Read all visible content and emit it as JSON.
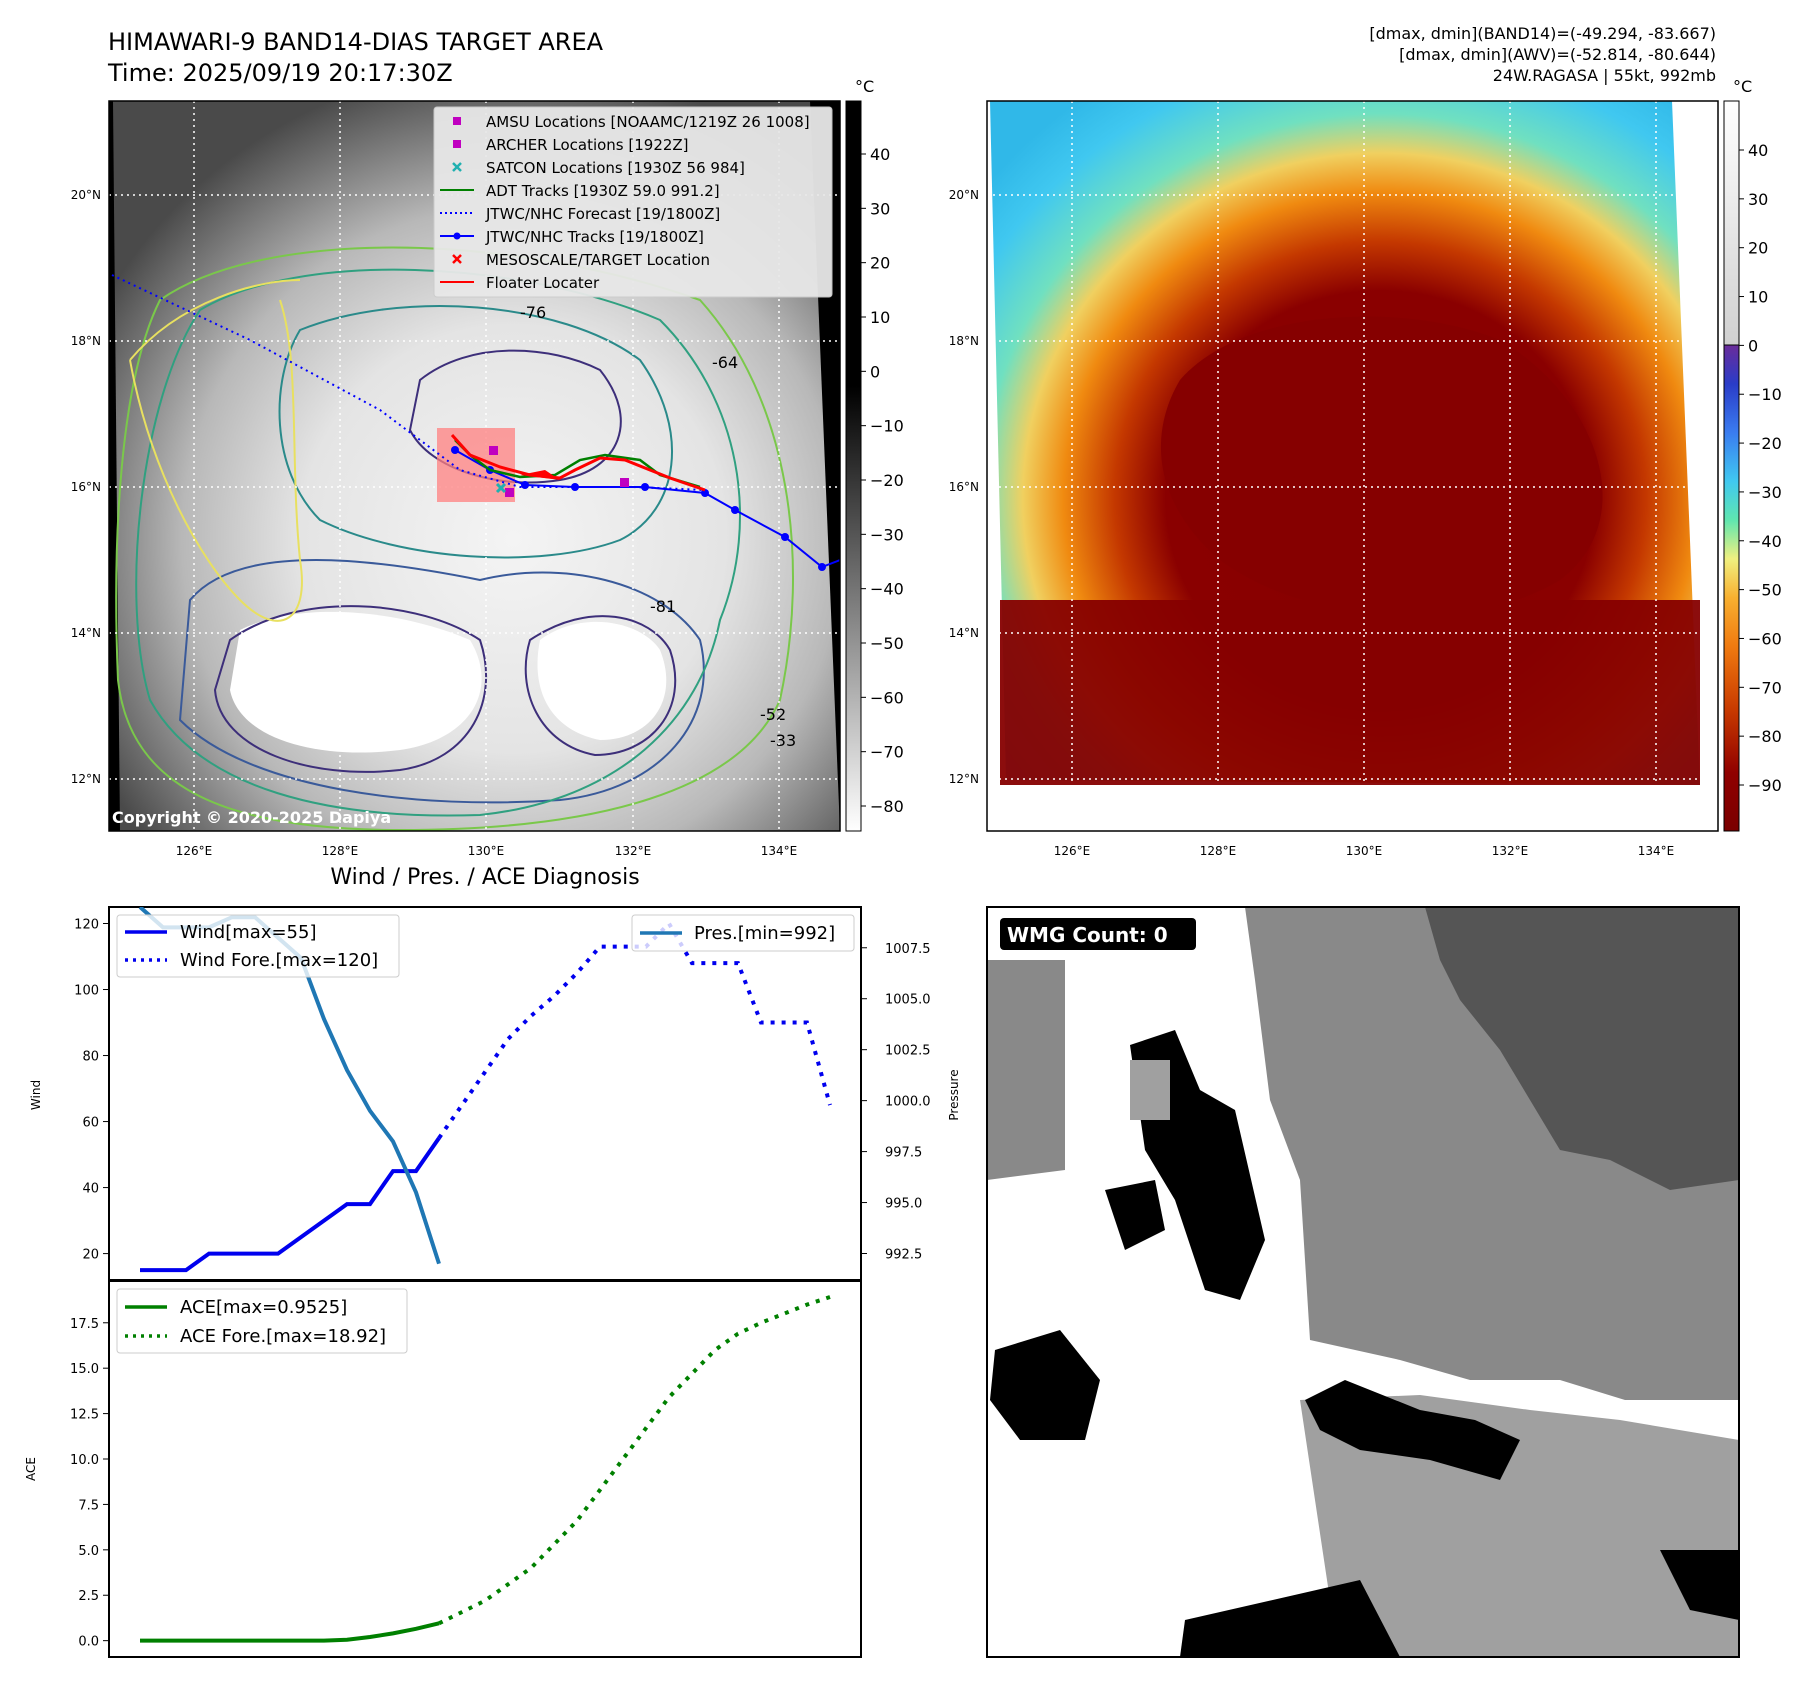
{
  "header": {
    "title_line1": "HIMAWARI-9 BAND14-DIAS TARGET AREA",
    "title_line2": "Time: 2025/09/19 20:17:30Z",
    "range_band14": "[dmax, dmin](BAND14)=(-49.294, -83.667)",
    "range_awv": "[dmax, dmin](AWV)=(-52.814, -80.644)",
    "storm_info": "24W.RAGASA | 55kt, 992mb"
  },
  "map_left": {
    "lon_labels": [
      "126°E",
      "128°E",
      "130°E",
      "132°E",
      "134°E"
    ],
    "lat_labels": [
      "20°N",
      "18°N",
      "16°N",
      "14°N",
      "12°N"
    ],
    "copyright": "Copyright © 2020-2025 Dapiya",
    "contour_labels": [
      "-76",
      "-64",
      "-81",
      "-52",
      "-33"
    ],
    "legend": [
      {
        "label": "AMSU Locations [NOAAMC/1219Z 26 1008]",
        "symbol": "square",
        "color": "#c000c0"
      },
      {
        "label": "ARCHER Locations [1922Z]",
        "symbol": "square",
        "color": "#c000c0"
      },
      {
        "label": "SATCON Locations [1930Z 56 984]",
        "symbol": "x",
        "color": "#20b0b0"
      },
      {
        "label": "ADT Tracks [1930Z 59.0 991.2]",
        "symbol": "line",
        "color": "#008000"
      },
      {
        "label": "JTWC/NHC Forecast [19/1800Z]",
        "symbol": "dotted",
        "color": "#0000ff"
      },
      {
        "label": "JTWC/NHC Tracks [19/1800Z]",
        "symbol": "line-dot",
        "color": "#0000ff"
      },
      {
        "label": "MESOSCALE/TARGET Location",
        "symbol": "x",
        "color": "#ff0000"
      },
      {
        "label": "Floater Locater",
        "symbol": "line",
        "color": "#ff0000"
      }
    ],
    "colorbar": {
      "unit": "°C",
      "ticks": [
        "40",
        "30",
        "20",
        "10",
        "0",
        "−10",
        "−20",
        "−30",
        "−40",
        "−50",
        "−60",
        "−70",
        "−80"
      ]
    }
  },
  "map_right": {
    "lon_labels": [
      "126°E",
      "128°E",
      "130°E",
      "132°E",
      "134°E"
    ],
    "lat_labels": [
      "20°N",
      "18°N",
      "16°N",
      "14°N",
      "12°N"
    ],
    "colorbar": {
      "unit": "°C",
      "ticks": [
        "40",
        "30",
        "20",
        "10",
        "0",
        "−10",
        "−20",
        "−30",
        "−40",
        "−50",
        "−60",
        "−70",
        "−80",
        "−90"
      ]
    }
  },
  "chart_data": [
    {
      "type": "line",
      "title": "Wind / Pres. / ACE Diagnosis",
      "ylabel": "Wind",
      "ylabel_right": "Pressure",
      "ylim": [
        12,
        125
      ],
      "ylim_right": [
        991.2,
        1009.5
      ],
      "yticks": [
        "20",
        "40",
        "60",
        "80",
        "100",
        "120"
      ],
      "yticks_right": [
        "992.5",
        "995.0",
        "997.5",
        "1000.0",
        "1002.5",
        "1005.0",
        "1007.5"
      ],
      "legend_left": [
        "Wind[max=55]",
        "Wind Fore.[max=120]"
      ],
      "legend_right": [
        "Pres.[min=992]"
      ],
      "series": [
        {
          "name": "Wind[max=55]",
          "color": "#0000ee",
          "style": "solid",
          "x": [
            0,
            1,
            2,
            3,
            4,
            5,
            6,
            7,
            8,
            9,
            10,
            11,
            12,
            13
          ],
          "values": [
            15,
            15,
            15,
            20,
            20,
            20,
            20,
            25,
            30,
            35,
            35,
            45,
            45,
            55
          ]
        },
        {
          "name": "Wind Fore.[max=120]",
          "color": "#0000ee",
          "style": "dotted",
          "x": [
            13,
            14,
            15,
            16,
            17,
            18,
            19,
            20,
            21,
            22,
            23,
            24,
            25,
            26,
            27,
            28,
            29,
            30
          ],
          "values": [
            55,
            65,
            75,
            85,
            92,
            98,
            105,
            113,
            113,
            113,
            120,
            108,
            108,
            108,
            90,
            90,
            90,
            65
          ]
        },
        {
          "name": "Pres.[min=992]",
          "color": "#1f77b4",
          "style": "solid",
          "axis": "right",
          "x": [
            0,
            1,
            2,
            3,
            4,
            5,
            6,
            7,
            8,
            9,
            10,
            11,
            12,
            13
          ],
          "values": [
            1009.5,
            1008.5,
            1008.5,
            1008.5,
            1009.0,
            1009.0,
            1008.0,
            1007.0,
            1004.0,
            1001.5,
            999.5,
            998.0,
            995.5,
            992.0
          ]
        }
      ]
    },
    {
      "type": "line",
      "ylabel": "ACE",
      "ylim": [
        -0.9,
        19.8
      ],
      "yticks": [
        "0.0",
        "2.5",
        "5.0",
        "7.5",
        "10.0",
        "12.5",
        "15.0",
        "17.5"
      ],
      "legend": [
        "ACE[max=0.9525]",
        "ACE Fore.[max=18.92]"
      ],
      "series": [
        {
          "name": "ACE[max=0.9525]",
          "color": "#008000",
          "style": "solid",
          "x": [
            0,
            2,
            4,
            6,
            8,
            9,
            10,
            11,
            12,
            13
          ],
          "values": [
            0,
            0,
            0,
            0,
            0,
            0.05,
            0.2,
            0.4,
            0.65,
            0.9525
          ]
        },
        {
          "name": "ACE Fore.[max=18.92]",
          "color": "#008000",
          "style": "dotted",
          "x": [
            13,
            15,
            17,
            19,
            21,
            23,
            25,
            26,
            27,
            28,
            29,
            30
          ],
          "values": [
            0.9525,
            2.2,
            4.0,
            6.6,
            10.0,
            13.4,
            16.0,
            16.9,
            17.5,
            18.0,
            18.5,
            18.92
          ]
        }
      ]
    }
  ],
  "wmg": {
    "label": "WMG Count: 0"
  }
}
